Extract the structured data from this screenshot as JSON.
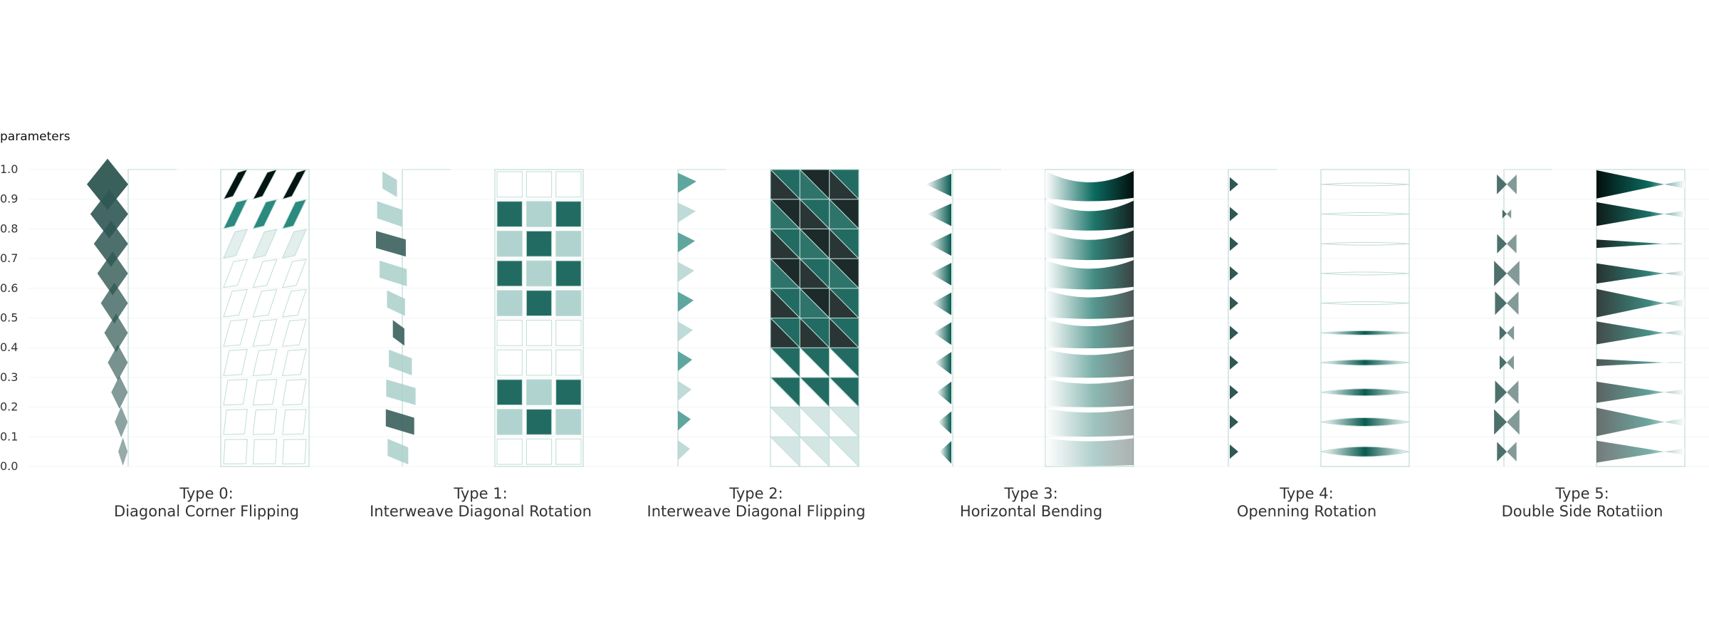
{
  "axis": {
    "title": "parameters",
    "ticks": [
      "0.0",
      "0.1",
      "0.2",
      "0.3",
      "0.4",
      "0.5",
      "0.6",
      "0.7",
      "0.8",
      "0.9",
      "1.0"
    ]
  },
  "panels": [
    {
      "type_label": "Type 0:",
      "name": "Diagonal Corner Flipping"
    },
    {
      "type_label": "Type 1:",
      "name": "Interweave Diagonal Rotation"
    },
    {
      "type_label": "Type 2:",
      "name": "Interweave Diagonal Flipping"
    },
    {
      "type_label": "Type 3:",
      "name": "Horizontal Bending"
    },
    {
      "type_label": "Type 4:",
      "name": "Openning Rotation"
    },
    {
      "type_label": "Type 5:",
      "name": "Double Side Rotatiion"
    }
  ],
  "colors": {
    "teal_dark": "#0b5c52",
    "teal_mid": "#2a8a7e",
    "teal_light": "#a9cfca",
    "slate": "#2f5753",
    "frame": "#bfdcd6",
    "black": "#041412"
  }
}
